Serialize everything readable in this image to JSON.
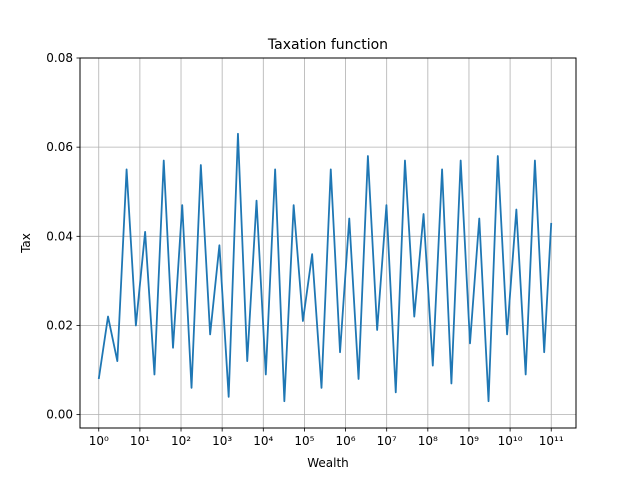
{
  "chart_data": {
    "type": "line",
    "title": "Taxation function",
    "xlabel": "Wealth",
    "ylabel": "Tax",
    "xscale": "log",
    "xlim": [
      0.35,
      400000000000
    ],
    "ylim": [
      -0.003,
      0.08
    ],
    "xticks": [
      1,
      10,
      100,
      1000,
      10000,
      100000,
      1000000,
      10000000,
      100000000,
      1000000000,
      10000000000,
      100000000000
    ],
    "xtick_labels": [
      "10⁰",
      "10¹",
      "10²",
      "10³",
      "10⁴",
      "10⁵",
      "10⁶",
      "10⁷",
      "10⁸",
      "10⁹",
      "10¹⁰",
      "10¹¹"
    ],
    "yticks": [
      0.0,
      0.02,
      0.04,
      0.06,
      0.08
    ],
    "ytick_labels": [
      "0.00",
      "0.02",
      "0.04",
      "0.06",
      "0.08"
    ],
    "grid": true,
    "series": [
      {
        "color": "#1f77b4",
        "x": [
          1,
          1.68,
          2.83,
          4.75,
          7.99,
          13.4,
          22.6,
          38,
          63.8,
          107,
          180,
          303,
          510,
          857,
          1440,
          2420,
          4070,
          6850,
          11500,
          19400,
          32500,
          54700,
          91900,
          154000,
          260000,
          437000,
          734000,
          1230000,
          2070000,
          3490000,
          5860000,
          9850000,
          16600000,
          27800000,
          46800000,
          78700000,
          132000000,
          222000000,
          374000000,
          629000000,
          1060000000,
          1780000000,
          2990000000,
          5020000000,
          8440000000,
          14200000000,
          23900000000,
          40100000000,
          67400000000,
          100000000000
        ],
        "y": [
          0.008,
          0.022,
          0.012,
          0.055,
          0.02,
          0.041,
          0.009,
          0.057,
          0.015,
          0.047,
          0.006,
          0.056,
          0.018,
          0.038,
          0.004,
          0.063,
          0.012,
          0.048,
          0.009,
          0.055,
          0.003,
          0.047,
          0.021,
          0.036,
          0.006,
          0.055,
          0.014,
          0.044,
          0.008,
          0.058,
          0.019,
          0.047,
          0.005,
          0.057,
          0.022,
          0.045,
          0.011,
          0.055,
          0.007,
          0.057,
          0.016,
          0.044,
          0.003,
          0.058,
          0.018,
          0.046,
          0.009,
          0.057,
          0.014,
          0.043
        ]
      }
    ]
  }
}
